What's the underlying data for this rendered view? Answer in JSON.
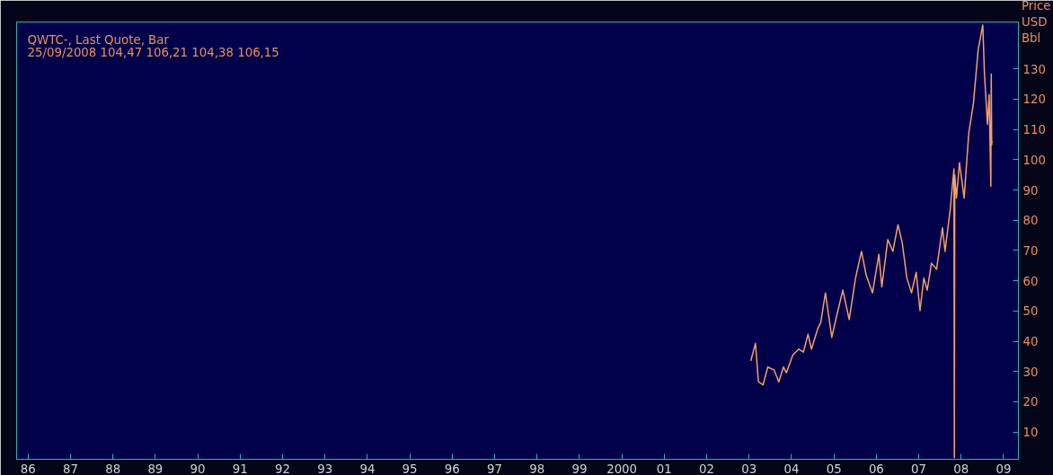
{
  "chart_data": {
    "type": "line",
    "title": "QWTC-, Last Quote, Bar",
    "subtitle": "25/09/2008 104,47 106,21 104,38 106,15",
    "ylabel": "Price USD Bbl",
    "x": [
      2003.04,
      2003.15,
      2003.22,
      2003.33,
      2003.44,
      2003.59,
      2003.7,
      2003.81,
      2003.88,
      2004.03,
      2004.17,
      2004.28,
      2004.39,
      2004.47,
      2004.62,
      2004.69,
      2004.8,
      2004.91,
      2004.95,
      2005.06,
      2005.21,
      2005.36,
      2005.51,
      2005.65,
      2005.76,
      2005.91,
      2006.06,
      2006.13,
      2006.27,
      2006.39,
      2006.51,
      2006.61,
      2006.72,
      2006.83,
      2006.94,
      2007.03,
      2007.12,
      2007.2,
      2007.3,
      2007.42,
      2007.56,
      2007.62,
      2007.74,
      2007.83,
      2007.84,
      2007.85,
      2007.89,
      2007.96,
      2008.07,
      2008.18,
      2008.29,
      2008.4,
      2008.51,
      2008.55,
      2008.62,
      2008.66,
      2008.7,
      2008.71,
      2008.72,
      2008.73
    ],
    "series": [
      {
        "color": "#f4a06a",
        "values": [
          33.5,
          39.3,
          26.6,
          25.6,
          31.5,
          30.5,
          26.6,
          31.5,
          29.6,
          35.4,
          37.4,
          36.4,
          42.3,
          37.4,
          44.2,
          46.2,
          56.0,
          45.2,
          41.3,
          48.1,
          56.9,
          47.2,
          60.9,
          69.7,
          61.9,
          56.0,
          68.7,
          58.0,
          73.6,
          69.7,
          78.5,
          72.6,
          60.9,
          56.0,
          62.8,
          50.1,
          60.9,
          56.9,
          65.8,
          63.8,
          77.5,
          69.7,
          83.3,
          97.0,
          1.5,
          95.0,
          87.3,
          99.0,
          87.3,
          108.8,
          118.6,
          136.2,
          144.5,
          128.3,
          111.7,
          121.5,
          91.2,
          128.3,
          104.9,
          106.2
        ]
      }
    ],
    "xlim": [
      1985.73,
      2009.35
    ],
    "ylim": [
      1,
      145.5
    ],
    "xticks": [
      {
        "value": 1986,
        "label": "86"
      },
      {
        "value": 1987,
        "label": "87"
      },
      {
        "value": 1988,
        "label": "88"
      },
      {
        "value": 1989,
        "label": "89"
      },
      {
        "value": 1990,
        "label": "90"
      },
      {
        "value": 1991,
        "label": "91"
      },
      {
        "value": 1992,
        "label": "92"
      },
      {
        "value": 1993,
        "label": "93"
      },
      {
        "value": 1994,
        "label": "94"
      },
      {
        "value": 1995,
        "label": "95"
      },
      {
        "value": 1996,
        "label": "96"
      },
      {
        "value": 1997,
        "label": "97"
      },
      {
        "value": 1998,
        "label": "98"
      },
      {
        "value": 1999,
        "label": "99"
      },
      2000,
      {
        "value": 2001,
        "label": "01"
      },
      {
        "value": 2002,
        "label": "02"
      },
      {
        "value": 2003,
        "label": "03"
      },
      {
        "value": 2004,
        "label": "04"
      },
      {
        "value": 2005,
        "label": "05"
      },
      {
        "value": 2006,
        "label": "06"
      },
      {
        "value": 2007,
        "label": "07"
      },
      {
        "value": 2008,
        "label": "08"
      },
      {
        "value": 2009,
        "label": "09"
      }
    ],
    "yticks": [
      10,
      20,
      30,
      40,
      50,
      60,
      70,
      80,
      90,
      100,
      110,
      120,
      130
    ],
    "grid": false,
    "marker": "none",
    "line_style": "solid"
  }
}
